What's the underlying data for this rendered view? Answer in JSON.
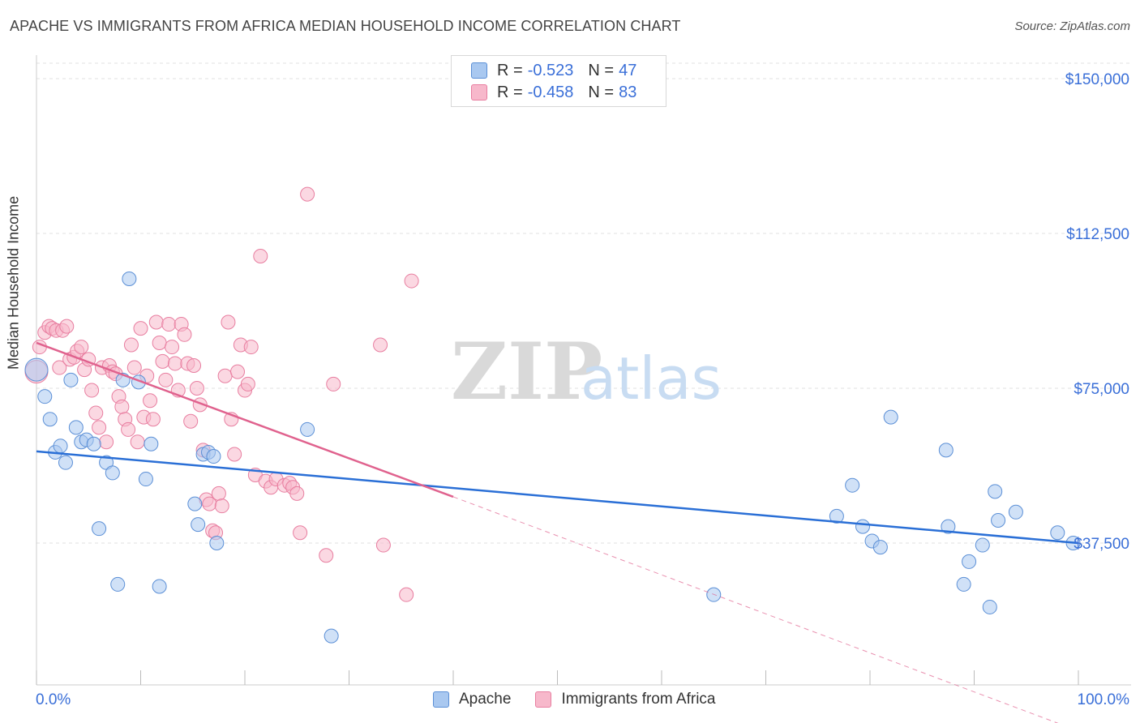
{
  "title": "APACHE VS IMMIGRANTS FROM AFRICA MEDIAN HOUSEHOLD INCOME CORRELATION CHART",
  "source": "Source: ZipAtlas.com",
  "watermark": {
    "zip": "ZIP",
    "atlas": "atlas"
  },
  "colors": {
    "apache_fill": "#a9c8f0",
    "apache_stroke": "#5b8fd6",
    "apache_line": "#2a6fd6",
    "africa_fill": "#f7b8cb",
    "africa_stroke": "#e87ea0",
    "africa_line": "#e0628e",
    "axis_value": "#3a6fd8",
    "grid": "#e2e2e2"
  },
  "legend_top": {
    "rows": [
      {
        "r_label": "R =",
        "r_value": "-0.523",
        "n_label": "N =",
        "n_value": "47"
      },
      {
        "r_label": "R =",
        "r_value": "-0.458",
        "n_label": "N =",
        "n_value": "83"
      }
    ]
  },
  "legend_bottom": {
    "items": [
      "Apache",
      "Immigrants from Africa"
    ]
  },
  "chart_data": {
    "type": "scatter",
    "title": "APACHE VS IMMIGRANTS FROM AFRICA MEDIAN HOUSEHOLD INCOME CORRELATION CHART",
    "xlabel": "",
    "ylabel": "Median Household Income",
    "xlim": [
      0,
      100
    ],
    "ylim": [
      0,
      150000
    ],
    "x_tick_labels": [
      "0.0%",
      "100.0%"
    ],
    "y_ticks": [
      37500,
      75000,
      112500,
      150000
    ],
    "y_tick_labels": [
      "$37,500",
      "$75,000",
      "$112,500",
      "$150,000"
    ],
    "grid": true,
    "series": [
      {
        "name": "Apache",
        "trend": {
          "x": [
            0,
            100
          ],
          "y": [
            59700,
            37500
          ],
          "style": "solid"
        },
        "points": [
          [
            0.0,
            79500
          ],
          [
            0.8,
            73000
          ],
          [
            1.3,
            67500
          ],
          [
            1.8,
            59500
          ],
          [
            2.3,
            61000
          ],
          [
            2.8,
            57000
          ],
          [
            3.3,
            77000
          ],
          [
            3.8,
            65500
          ],
          [
            4.3,
            62000
          ],
          [
            4.8,
            62500
          ],
          [
            5.5,
            61500
          ],
          [
            6.0,
            41000
          ],
          [
            6.7,
            57000
          ],
          [
            7.3,
            54500
          ],
          [
            7.8,
            27500
          ],
          [
            8.3,
            77000
          ],
          [
            8.9,
            101500
          ],
          [
            9.8,
            76500
          ],
          [
            10.5,
            53000
          ],
          [
            11.0,
            61500
          ],
          [
            11.8,
            27000
          ],
          [
            15.2,
            47000
          ],
          [
            15.5,
            42000
          ],
          [
            16.0,
            59000
          ],
          [
            16.5,
            59500
          ],
          [
            17.0,
            58500
          ],
          [
            17.3,
            37500
          ],
          [
            26.0,
            65000
          ],
          [
            28.3,
            15000
          ],
          [
            65.0,
            25000
          ],
          [
            76.8,
            44000
          ],
          [
            78.3,
            51500
          ],
          [
            79.3,
            41500
          ],
          [
            80.2,
            38000
          ],
          [
            81.0,
            36500
          ],
          [
            82.0,
            68000
          ],
          [
            87.3,
            60000
          ],
          [
            87.5,
            41500
          ],
          [
            89.0,
            27500
          ],
          [
            89.5,
            33000
          ],
          [
            90.8,
            37000
          ],
          [
            91.5,
            22000
          ],
          [
            92.0,
            50000
          ],
          [
            92.3,
            43000
          ],
          [
            94.0,
            45000
          ],
          [
            98.0,
            40000
          ],
          [
            99.5,
            37500
          ]
        ]
      },
      {
        "name": "Immigrants from Africa",
        "trend": {
          "x": [
            0,
            40
          ],
          "y": [
            86000,
            48700
          ],
          "style": "solid",
          "dashed_extension": {
            "x": [
              40,
              100
            ],
            "y": [
              48700,
              -8000
            ]
          }
        },
        "points": [
          [
            0.0,
            79000
          ],
          [
            0.3,
            85000
          ],
          [
            0.8,
            88500
          ],
          [
            1.2,
            90000
          ],
          [
            1.5,
            89500
          ],
          [
            1.9,
            89000
          ],
          [
            2.2,
            80000
          ],
          [
            2.5,
            89000
          ],
          [
            2.9,
            90000
          ],
          [
            3.2,
            82000
          ],
          [
            3.6,
            82500
          ],
          [
            3.9,
            84000
          ],
          [
            4.3,
            85000
          ],
          [
            4.6,
            79500
          ],
          [
            5.0,
            82000
          ],
          [
            5.3,
            74500
          ],
          [
            5.7,
            69000
          ],
          [
            6.0,
            65500
          ],
          [
            6.3,
            80000
          ],
          [
            6.7,
            62000
          ],
          [
            7.0,
            80500
          ],
          [
            7.3,
            79000
          ],
          [
            7.6,
            78500
          ],
          [
            7.9,
            73000
          ],
          [
            8.2,
            70500
          ],
          [
            8.5,
            67500
          ],
          [
            8.8,
            65000
          ],
          [
            9.1,
            85500
          ],
          [
            9.4,
            80000
          ],
          [
            9.7,
            62000
          ],
          [
            10.0,
            89500
          ],
          [
            10.3,
            68000
          ],
          [
            10.6,
            78000
          ],
          [
            10.9,
            72000
          ],
          [
            11.2,
            67500
          ],
          [
            11.5,
            91000
          ],
          [
            11.8,
            86000
          ],
          [
            12.1,
            81500
          ],
          [
            12.4,
            77000
          ],
          [
            12.7,
            90500
          ],
          [
            13.0,
            85000
          ],
          [
            13.3,
            81000
          ],
          [
            13.6,
            74500
          ],
          [
            13.9,
            90500
          ],
          [
            14.2,
            88000
          ],
          [
            14.5,
            81000
          ],
          [
            14.8,
            67000
          ],
          [
            15.1,
            80500
          ],
          [
            15.4,
            75000
          ],
          [
            15.7,
            71000
          ],
          [
            16.0,
            60000
          ],
          [
            16.3,
            48000
          ],
          [
            16.6,
            47000
          ],
          [
            16.9,
            40500
          ],
          [
            17.2,
            40000
          ],
          [
            17.5,
            49500
          ],
          [
            17.8,
            46500
          ],
          [
            18.1,
            78000
          ],
          [
            18.4,
            91000
          ],
          [
            18.7,
            67500
          ],
          [
            19.0,
            59000
          ],
          [
            19.3,
            79000
          ],
          [
            19.6,
            85500
          ],
          [
            20.0,
            74500
          ],
          [
            20.3,
            76000
          ],
          [
            20.6,
            85000
          ],
          [
            21.0,
            54000
          ],
          [
            21.5,
            107000
          ],
          [
            22.0,
            52500
          ],
          [
            22.5,
            51000
          ],
          [
            23.0,
            53000
          ],
          [
            23.8,
            51500
          ],
          [
            24.3,
            52000
          ],
          [
            24.6,
            51000
          ],
          [
            25.0,
            49500
          ],
          [
            25.3,
            40000
          ],
          [
            26.0,
            122000
          ],
          [
            27.8,
            34500
          ],
          [
            28.5,
            76000
          ],
          [
            33.0,
            85500
          ],
          [
            33.3,
            37000
          ],
          [
            35.5,
            25000
          ],
          [
            36.0,
            101000
          ]
        ]
      }
    ]
  }
}
